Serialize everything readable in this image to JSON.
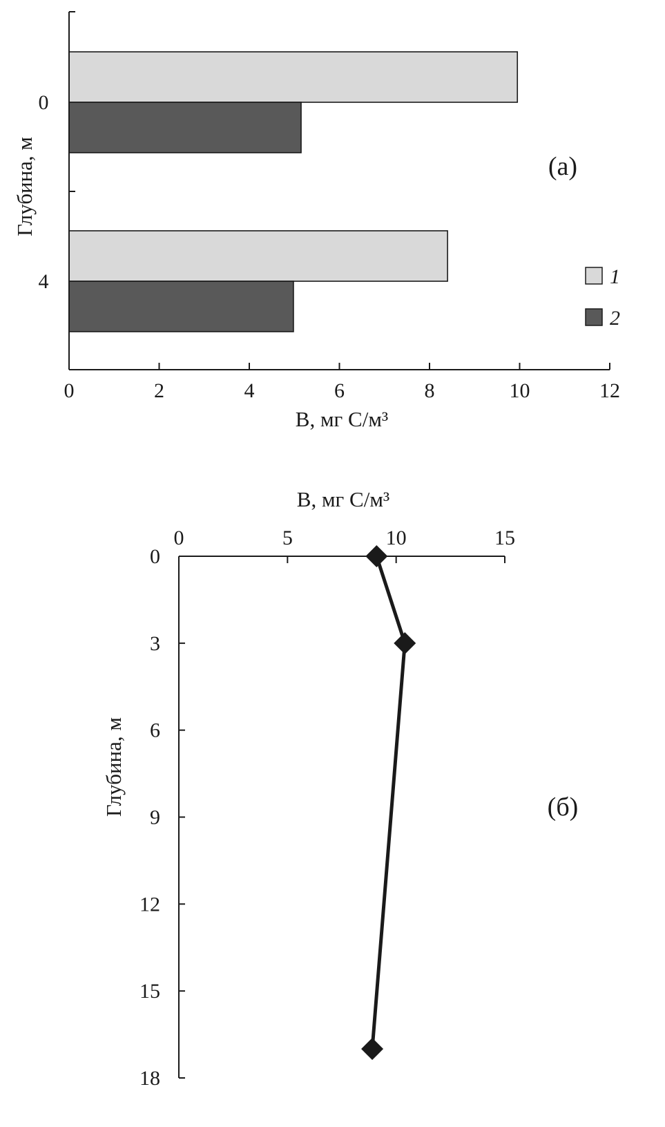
{
  "colors": {
    "series_1": "#d9d9d9",
    "series_2": "#595959",
    "axis": "#1a1a1a",
    "line": "#1a1a1a"
  },
  "chart_data": [
    {
      "type": "bar",
      "orientation": "horizontal",
      "panel_label": "(а)",
      "xlabel": "B, мг С/м³",
      "ylabel": "Глубина, м",
      "xlim": [
        0,
        12
      ],
      "x_ticks": [
        "0",
        "2",
        "4",
        "6",
        "8",
        "10",
        "12"
      ],
      "categories": [
        "0",
        "4"
      ],
      "series": [
        {
          "name": "1",
          "values": [
            9.95,
            8.4
          ]
        },
        {
          "name": "2",
          "values": [
            5.15,
            4.98
          ]
        }
      ],
      "legend": "right",
      "grid": false
    },
    {
      "type": "line",
      "panel_label": "(б)",
      "xlabel": "B, мг С/м³",
      "ylabel": "Глубина, м",
      "xlim": [
        0,
        15
      ],
      "ylim": [
        0,
        18
      ],
      "y_inverted": true,
      "x_axis_position": "top",
      "x_ticks": [
        "0",
        "5",
        "10",
        "15"
      ],
      "y_ticks": [
        "0",
        "3",
        "6",
        "9",
        "12",
        "15",
        "18"
      ],
      "marker": "diamond",
      "grid": false,
      "points": [
        {
          "x": 9.1,
          "y": 0
        },
        {
          "x": 10.4,
          "y": 3
        },
        {
          "x": 8.9,
          "y": 17
        }
      ]
    }
  ]
}
